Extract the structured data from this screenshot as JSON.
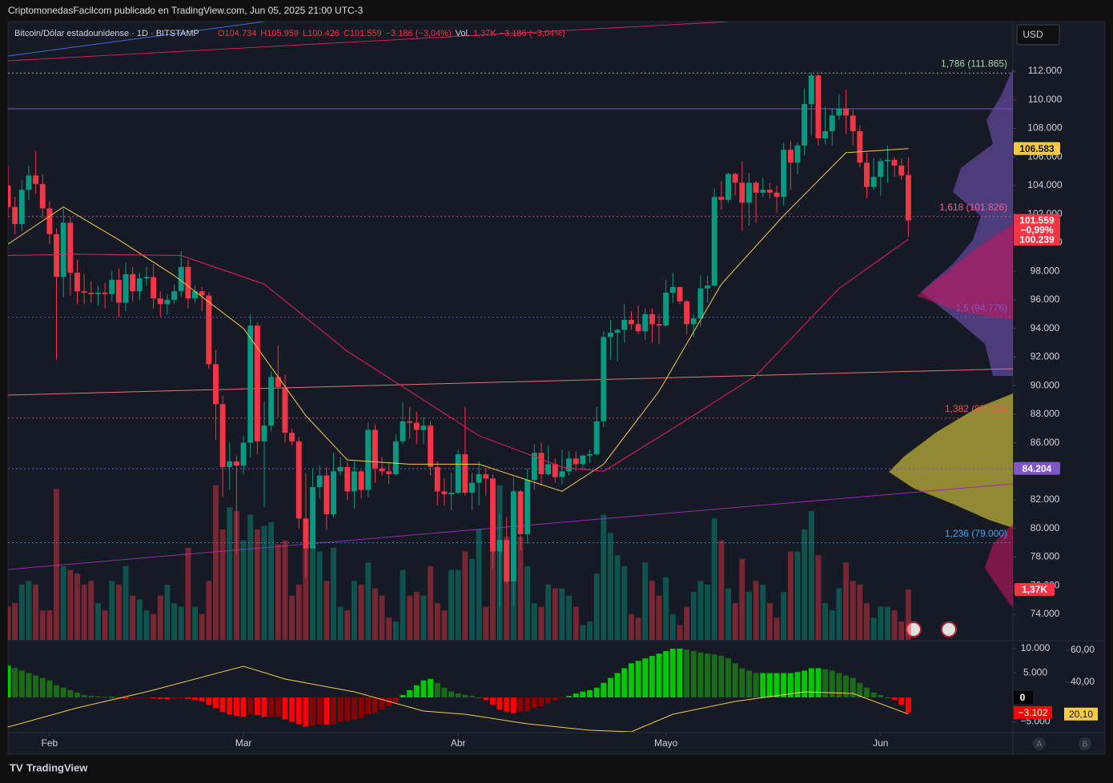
{
  "header": {
    "publisher": "CriptomonedasFacilcom publicado en TradingView.com, Jun 05, 2025 21:00 UTC-3",
    "symbol": "Bitcoin/Dólar estadounidense · 1D · BITSTAMP",
    "ohlc": [
      "O104.734",
      "H105.959",
      "L100.426",
      "C101.559",
      "−3.186 (−3,04%)"
    ],
    "volume": [
      "Vol.",
      "1,37K",
      "−3.186 (−3,04%)"
    ]
  },
  "currency_button": "USD",
  "footer": {
    "brand": "TradingView",
    "buttons": [
      "A",
      "B"
    ]
  },
  "chart_data": {
    "type": "candlestick",
    "up_color": "#089981",
    "down_color": "#f23645",
    "xlim": [
      0,
      145.1
    ],
    "xticks": [
      {
        "value": 6,
        "label": "Feb"
      },
      {
        "value": 34,
        "label": "Mar"
      },
      {
        "value": 65,
        "label": "Abr"
      },
      {
        "value": 95,
        "label": "Mayo"
      },
      {
        "value": 126,
        "label": "Jun"
      }
    ],
    "ylim": [
      72210,
      115470
    ],
    "yticks": [
      {
        "value": 74000,
        "label": "74.000"
      },
      {
        "value": 76000,
        "label": "76.000"
      },
      {
        "value": 78000,
        "label": "78.000"
      },
      {
        "value": 80000,
        "label": "80.000"
      },
      {
        "value": 82000,
        "label": "82.000"
      },
      {
        "value": 84000,
        "label": "84.000"
      },
      {
        "value": 86000,
        "label": "86.000"
      },
      {
        "value": 88000,
        "label": "88.000"
      },
      {
        "value": 90000,
        "label": "90.000"
      },
      {
        "value": 92000,
        "label": "92.000"
      },
      {
        "value": 94000,
        "label": "94.000"
      },
      {
        "value": 96000,
        "label": "96.000"
      },
      {
        "value": 98000,
        "label": "98.000"
      },
      {
        "value": 100000,
        "label": "100.000"
      },
      {
        "value": 102000,
        "label": "102.000"
      },
      {
        "value": 104000,
        "label": "104.000"
      },
      {
        "value": 106000,
        "label": "106.000"
      },
      {
        "value": 108000,
        "label": "108.000"
      },
      {
        "value": 110000,
        "label": "110.000"
      },
      {
        "value": 112000,
        "label": "112.000"
      }
    ],
    "candles": [
      [
        104000,
        105300,
        101800,
        102500
      ],
      [
        102500,
        103200,
        100600,
        101300
      ],
      [
        101300,
        104400,
        100800,
        103700
      ],
      [
        103700,
        105400,
        103000,
        104700
      ],
      [
        104700,
        106400,
        103400,
        104100
      ],
      [
        104100,
        104800,
        101700,
        102400
      ],
      [
        102400,
        102900,
        99900,
        100600
      ],
      [
        100600,
        101000,
        91800,
        97600
      ],
      [
        97600,
        102400,
        96200,
        101400
      ],
      [
        101400,
        101800,
        96300,
        97900
      ],
      [
        97900,
        98800,
        95700,
        96600
      ],
      [
        96600,
        97800,
        95700,
        96500
      ],
      [
        96500,
        97300,
        95800,
        96400
      ],
      [
        96400,
        97000,
        95600,
        96500
      ],
      [
        96500,
        97200,
        95400,
        96400
      ],
      [
        96400,
        98000,
        95900,
        97400
      ],
      [
        97400,
        98200,
        94800,
        95800
      ],
      [
        95800,
        98600,
        95200,
        97800
      ],
      [
        97800,
        98300,
        95900,
        96600
      ],
      [
        96600,
        97900,
        96000,
        97500
      ],
      [
        97500,
        98300,
        97000,
        97600
      ],
      [
        97600,
        98500,
        95400,
        96100
      ],
      [
        96100,
        96600,
        94800,
        95700
      ],
      [
        95700,
        96400,
        95000,
        96000
      ],
      [
        96000,
        97100,
        95700,
        96600
      ],
      [
        96600,
        99400,
        96200,
        98300
      ],
      [
        98300,
        98800,
        95400,
        96100
      ],
      [
        96100,
        97000,
        95800,
        96600
      ],
      [
        96600,
        96900,
        95200,
        96300
      ],
      [
        96300,
        96500,
        91200,
        91500
      ],
      [
        91500,
        92500,
        86200,
        88700
      ],
      [
        88700,
        89300,
        82200,
        84300
      ],
      [
        84300,
        86000,
        82700,
        84700
      ],
      [
        84700,
        85100,
        78200,
        84400
      ],
      [
        84400,
        86500,
        83800,
        86000
      ],
      [
        86000,
        95000,
        85000,
        94200
      ],
      [
        94200,
        94400,
        85200,
        86100
      ],
      [
        86100,
        88900,
        81500,
        87200
      ],
      [
        87200,
        91000,
        86800,
        90600
      ],
      [
        90600,
        92800,
        87800,
        89900
      ],
      [
        89900,
        90800,
        86000,
        86700
      ],
      [
        86700,
        87000,
        85800,
        86100
      ],
      [
        86100,
        86400,
        80000,
        80700
      ],
      [
        80700,
        83900,
        76600,
        78600
      ],
      [
        78600,
        84200,
        78600,
        82900
      ],
      [
        82900,
        84400,
        82100,
        83700
      ],
      [
        83700,
        84300,
        79900,
        81000
      ],
      [
        81000,
        85300,
        80800,
        84000
      ],
      [
        84000,
        85000,
        83700,
        84300
      ],
      [
        84300,
        84700,
        82000,
        82600
      ],
      [
        82600,
        84700,
        81400,
        84000
      ],
      [
        84000,
        84100,
        82100,
        82700
      ],
      [
        82700,
        87400,
        82200,
        86900
      ],
      [
        86900,
        87300,
        83200,
        84200
      ],
      [
        84200,
        85000,
        83700,
        84000
      ],
      [
        84000,
        84600,
        83100,
        83800
      ],
      [
        83800,
        86600,
        83700,
        86100
      ],
      [
        86100,
        88800,
        85900,
        87500
      ],
      [
        87500,
        88500,
        86300,
        87400
      ],
      [
        87400,
        88200,
        85900,
        86900
      ],
      [
        86900,
        87800,
        85900,
        87200
      ],
      [
        87200,
        87500,
        83700,
        84300
      ],
      [
        84300,
        84700,
        81600,
        82600
      ],
      [
        82600,
        83500,
        81600,
        82400
      ],
      [
        82400,
        83900,
        81300,
        82500
      ],
      [
        82500,
        85500,
        82400,
        85200
      ],
      [
        85200,
        88500,
        82300,
        82500
      ],
      [
        82500,
        83900,
        81300,
        83200
      ],
      [
        83200,
        84700,
        81600,
        83800
      ],
      [
        83800,
        84200,
        82300,
        83500
      ],
      [
        83500,
        83800,
        77200,
        78400
      ],
      [
        78400,
        81100,
        74500,
        79200
      ],
      [
        79200,
        80800,
        76200,
        76300
      ],
      [
        76300,
        83500,
        74600,
        82600
      ],
      [
        82600,
        82700,
        78500,
        79600
      ],
      [
        79600,
        84200,
        78900,
        83400
      ],
      [
        83400,
        85900,
        82700,
        85300
      ],
      [
        85300,
        86000,
        83000,
        83800
      ],
      [
        83800,
        85800,
        83700,
        84500
      ],
      [
        84500,
        84900,
        83200,
        83600
      ],
      [
        83600,
        85500,
        83100,
        84000
      ],
      [
        84000,
        85400,
        83700,
        84900
      ],
      [
        84900,
        85400,
        84000,
        84500
      ],
      [
        84500,
        85200,
        84100,
        85100
      ],
      [
        85100,
        85500,
        84600,
        85200
      ],
      [
        85200,
        88500,
        85100,
        87500
      ],
      [
        87500,
        93800,
        87100,
        93400
      ],
      [
        93400,
        94600,
        91800,
        93700
      ],
      [
        93700,
        94000,
        91700,
        93900
      ],
      [
        93900,
        95700,
        93000,
        94600
      ],
      [
        94600,
        95200,
        93900,
        94300
      ],
      [
        94300,
        95600,
        93600,
        93800
      ],
      [
        93800,
        95400,
        93200,
        95000
      ],
      [
        95000,
        95400,
        93000,
        94300
      ],
      [
        94300,
        95000,
        92900,
        94200
      ],
      [
        94200,
        97400,
        94100,
        96500
      ],
      [
        96500,
        97900,
        95800,
        96900
      ],
      [
        96900,
        96900,
        95700,
        95900
      ],
      [
        95900,
        96000,
        93600,
        94300
      ],
      [
        94300,
        95000,
        93400,
        94700
      ],
      [
        94700,
        97700,
        94100,
        96800
      ],
      [
        96800,
        97700,
        95800,
        97000
      ],
      [
        97000,
        103800,
        96900,
        103200
      ],
      [
        103200,
        104300,
        102300,
        103000
      ],
      [
        103000,
        104900,
        102800,
        104800
      ],
      [
        104800,
        104900,
        103300,
        104200
      ],
      [
        104200,
        105700,
        100800,
        102800
      ],
      [
        102800,
        104900,
        101200,
        104200
      ],
      [
        104200,
        104300,
        101400,
        103500
      ],
      [
        103500,
        104500,
        103200,
        103700
      ],
      [
        103700,
        104200,
        103100,
        103500
      ],
      [
        103500,
        104000,
        102100,
        103200
      ],
      [
        103200,
        107000,
        102600,
        106500
      ],
      [
        106500,
        107100,
        103700,
        105600
      ],
      [
        105600,
        107000,
        104800,
        106800
      ],
      [
        106800,
        110800,
        106100,
        109700
      ],
      [
        109700,
        111900,
        107500,
        111700
      ],
      [
        111700,
        111800,
        106800,
        107300
      ],
      [
        107300,
        109500,
        106900,
        107800
      ],
      [
        107800,
        109400,
        106800,
        108900
      ],
      [
        108900,
        110400,
        108600,
        109400
      ],
      [
        109400,
        110700,
        107600,
        108900
      ],
      [
        108900,
        109300,
        106800,
        107800
      ],
      [
        107800,
        108200,
        105300,
        105600
      ],
      [
        105600,
        106300,
        103100,
        103900
      ],
      [
        103900,
        105900,
        103700,
        104600
      ],
      [
        104600,
        105900,
        103300,
        105700
      ],
      [
        105700,
        106800,
        104200,
        105800
      ],
      [
        105800,
        106000,
        104600,
        105400
      ],
      [
        105400,
        105900,
        104400,
        104700
      ],
      [
        104734,
        105959,
        100426,
        101559
      ]
    ],
    "price_labels": [
      {
        "value": 106583,
        "label": "106.583",
        "color": "#f7c948"
      },
      {
        "value": 101559,
        "label": "101.559",
        "color": "#f23645"
      },
      {
        "value": 100239,
        "label": "100.239",
        "color": "#f23645"
      },
      {
        "value": 84204,
        "label": "84.204",
        "color": "#7e57c2"
      }
    ],
    "change_label": "−0,99%",
    "fib_levels": [
      {
        "value": 111865,
        "label": "1,786 (111.865)",
        "color": "#a5d6a7"
      },
      {
        "value": 101826,
        "label": "1,618 (101.826)",
        "color": "#f06292"
      },
      {
        "value": 94776,
        "label": "1,5 (94.776)",
        "color": "#7e57c2"
      },
      {
        "value": 87724,
        "label": "1,382 (87.724)",
        "color": "#ef5350"
      },
      {
        "value": 79000,
        "label": "1,236 (79.000)",
        "color": "#42a5f5"
      }
    ],
    "moving_averages": [
      {
        "color": "#f7c948",
        "x": [
          0,
          8,
          16,
          24,
          34,
          43,
          49,
          58,
          68,
          80,
          86,
          94,
          103,
          112,
          121,
          130
        ],
        "values": [
          99900,
          102500,
          100200,
          97700,
          94000,
          87900,
          84800,
          84500,
          84500,
          82600,
          84500,
          89600,
          97100,
          101900,
          106300,
          106583
        ]
      },
      {
        "color": "#e91e63",
        "x": [
          0,
          10,
          25,
          37,
          49,
          59,
          68,
          80,
          86,
          97,
          108,
          120,
          130
        ],
        "values": [
          99100,
          99200,
          99100,
          97100,
          92400,
          89300,
          86500,
          84300,
          84000,
          87300,
          90700,
          96800,
          100239
        ]
      }
    ],
    "volume": {
      "ylim": [
        0,
        16800
      ],
      "values": [
        900,
        1000,
        1500,
        1600,
        1500,
        800,
        800,
        4100,
        2000,
        1900,
        1800,
        1500,
        1600,
        1000,
        800,
        1600,
        1500,
        2000,
        1200,
        1100,
        800,
        700,
        1200,
        1500,
        1000,
        900,
        2500,
        900,
        700,
        1600,
        4200,
        3000,
        3600,
        3500,
        2700,
        3400,
        3000,
        3100,
        3200,
        2600,
        2700,
        1200,
        1500,
        3200,
        3000,
        2400,
        1600,
        2500,
        900,
        800,
        1600,
        1500,
        2100,
        1400,
        1200,
        600,
        500,
        1900,
        1200,
        1300,
        1200,
        2000,
        1000,
        800,
        1900,
        1900,
        2400,
        2200,
        3000,
        900,
        2600,
        4200,
        2800,
        3900,
        2800,
        2000,
        1000,
        900,
        1500,
        1400,
        1400,
        1200,
        900,
        400,
        500,
        1800,
        3400,
        2900,
        2300,
        2000,
        700,
        600,
        2100,
        1600,
        1200,
        1700,
        700,
        400,
        900,
        1300,
        1600,
        1500,
        3300,
        2700,
        1400,
        1000,
        2200,
        1300,
        1600,
        1500,
        1000,
        600,
        1300,
        2400,
        2400,
        3000,
        3500,
        2300,
        1000,
        800,
        1400,
        2100,
        1600,
        1500,
        1000,
        600,
        900,
        900,
        800,
        500,
        1370
      ],
      "last_label": "1,37K"
    },
    "oscillator": {
      "ylim": [
        -7050,
        11475
      ],
      "yticks": [
        {
          "value": 10000,
          "label": "10.000"
        },
        {
          "value": 5000,
          "label": "5.000"
        },
        {
          "value": -5000,
          "label": "−5.000"
        }
      ],
      "zero_tick": 0,
      "last_label": {
        "value": -3102,
        "label": "−3.102"
      },
      "values": [
        6500,
        6000,
        5500,
        5000,
        4500,
        4000,
        3500,
        2500,
        2000,
        1500,
        1000,
        500,
        300,
        200,
        100,
        100,
        -200,
        -300,
        -200,
        -100,
        -100,
        -200,
        -300,
        -400,
        -300,
        -200,
        -300,
        -500,
        -800,
        -1500,
        -2200,
        -3000,
        -3500,
        -3800,
        -4000,
        -3500,
        -3600,
        -4000,
        -4000,
        -4000,
        -4500,
        -5000,
        -5500,
        -6000,
        -5800,
        -5500,
        -5600,
        -5500,
        -5000,
        -4800,
        -4500,
        -4200,
        -3500,
        -3200,
        -2500,
        -1800,
        -1000,
        500,
        1500,
        2500,
        3500,
        3800,
        3000,
        2000,
        1200,
        800,
        500,
        300,
        0,
        -500,
        -1500,
        -2500,
        -3000,
        -3200,
        -3000,
        -2800,
        -2200,
        -1800,
        -1200,
        -600,
        -200,
        300,
        800,
        1200,
        1500,
        2000,
        3000,
        4000,
        5000,
        6000,
        7000,
        7500,
        8000,
        8500,
        9000,
        9500,
        10000,
        10000,
        9800,
        9500,
        9200,
        9000,
        8800,
        8500,
        8000,
        7000,
        6000,
        5500,
        5000,
        5000,
        5000,
        5000,
        5000,
        5000,
        5200,
        5500,
        6000,
        6000,
        5800,
        5500,
        5000,
        4500,
        4000,
        3000,
        2000,
        1000,
        500,
        0,
        -500,
        -1500,
        -3102
      ]
    },
    "signal": {
      "color": "#f7c948",
      "ylim": [
        9,
        65.5
      ],
      "yticks": [
        {
          "value": 60,
          "label": "60,00"
        },
        {
          "value": 40,
          "label": "40,00"
        }
      ],
      "last_label": {
        "value": 20.1,
        "label": "20,10"
      },
      "x": [
        0,
        10,
        20,
        34,
        40,
        50,
        60,
        66,
        75,
        84,
        90,
        96,
        105,
        115,
        122,
        130
      ],
      "values": [
        12,
        24,
        34,
        50,
        42,
        34,
        22,
        20,
        14,
        10,
        9,
        20,
        28,
        34,
        33,
        20.1
      ]
    }
  }
}
